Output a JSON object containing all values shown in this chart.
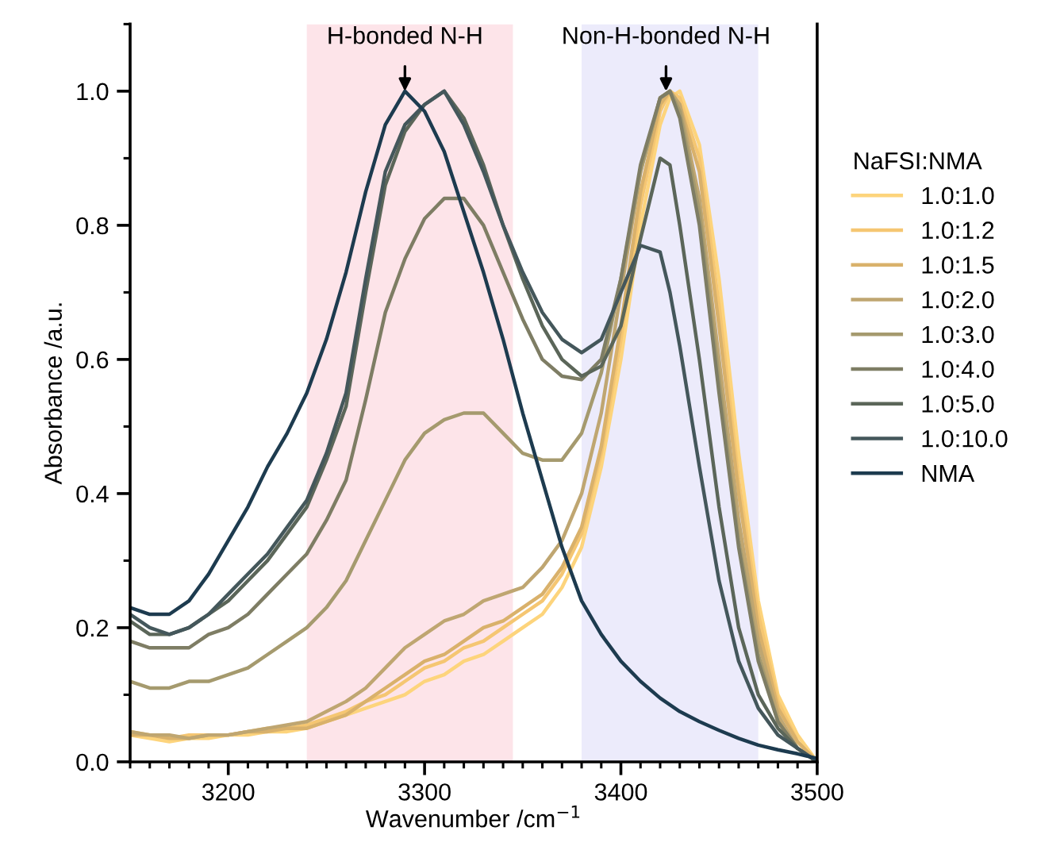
{
  "chart_data": {
    "type": "line",
    "xlabel": "Wavenumber /cm$^{−1}$",
    "ylabel": "Absorbance /a.u.",
    "legend_title": "NaFSI:NMA",
    "xlim": [
      3150,
      3500
    ],
    "xticks": [
      3200,
      3300,
      3400,
      3500
    ],
    "ylim": [
      0,
      1.1
    ],
    "yticks": [
      {
        "value": 0,
        "label": "0.0"
      },
      {
        "value": 0.2,
        "label": "0.2"
      },
      {
        "value": 0.4,
        "label": "0.4"
      },
      {
        "value": 0.6,
        "label": "0.6"
      },
      {
        "value": 0.8,
        "label": "0.8"
      },
      {
        "value": 1.0,
        "label": "1.0"
      }
    ],
    "grid": false,
    "legend": "right",
    "marker": "none",
    "line_style": "solid",
    "bands": [
      {
        "axis": "x",
        "from": 3240,
        "to": 3345,
        "color": "#fde4e9"
      },
      {
        "axis": "x",
        "from": 3380,
        "to": 3470,
        "color": "#ecebfb"
      }
    ],
    "annotations": [
      {
        "text": "H-bonded N-H",
        "x": 3290,
        "y": 1.0
      },
      {
        "text": "Non-H-bonded N-H",
        "x": 3423,
        "y": 1.0
      }
    ],
    "x": [
      3150,
      3160,
      3170,
      3180,
      3190,
      3200,
      3210,
      3220,
      3230,
      3240,
      3250,
      3260,
      3270,
      3280,
      3290,
      3300,
      3310,
      3320,
      3330,
      3340,
      3350,
      3360,
      3370,
      3380,
      3390,
      3400,
      3410,
      3420,
      3425,
      3430,
      3440,
      3450,
      3460,
      3470,
      3480,
      3490,
      3500
    ],
    "series": [
      {
        "name": "1.0:1.0",
        "color": "#fdd47c",
        "values": [
          0.04,
          0.035,
          0.03,
          0.035,
          0.035,
          0.04,
          0.04,
          0.045,
          0.045,
          0.05,
          0.06,
          0.07,
          0.08,
          0.09,
          0.1,
          0.12,
          0.13,
          0.15,
          0.16,
          0.18,
          0.2,
          0.22,
          0.26,
          0.32,
          0.44,
          0.6,
          0.8,
          0.95,
          0.99,
          1.0,
          0.92,
          0.72,
          0.46,
          0.24,
          0.1,
          0.04,
          0.0
        ]
      },
      {
        "name": "1.0:1.2",
        "color": "#f5c672",
        "values": [
          0.045,
          0.04,
          0.035,
          0.04,
          0.04,
          0.04,
          0.045,
          0.05,
          0.05,
          0.055,
          0.065,
          0.075,
          0.09,
          0.1,
          0.12,
          0.14,
          0.15,
          0.17,
          0.18,
          0.2,
          0.22,
          0.24,
          0.28,
          0.34,
          0.46,
          0.63,
          0.83,
          0.97,
          1.0,
          0.99,
          0.9,
          0.68,
          0.42,
          0.22,
          0.09,
          0.03,
          0.0
        ]
      },
      {
        "name": "1.0:1.5",
        "color": "#d9b16b",
        "values": [
          0.04,
          0.04,
          0.035,
          0.035,
          0.04,
          0.04,
          0.045,
          0.045,
          0.05,
          0.05,
          0.06,
          0.07,
          0.09,
          0.11,
          0.13,
          0.15,
          0.16,
          0.18,
          0.2,
          0.21,
          0.23,
          0.25,
          0.29,
          0.35,
          0.47,
          0.65,
          0.85,
          0.98,
          1.0,
          0.98,
          0.88,
          0.65,
          0.4,
          0.2,
          0.08,
          0.03,
          0.0
        ]
      },
      {
        "name": "1.0:2.0",
        "color": "#bfa671",
        "values": [
          0.045,
          0.04,
          0.04,
          0.035,
          0.04,
          0.04,
          0.045,
          0.05,
          0.055,
          0.06,
          0.075,
          0.09,
          0.11,
          0.14,
          0.17,
          0.19,
          0.21,
          0.22,
          0.24,
          0.25,
          0.26,
          0.29,
          0.33,
          0.4,
          0.52,
          0.7,
          0.88,
          0.99,
          1.0,
          0.98,
          0.84,
          0.6,
          0.36,
          0.18,
          0.07,
          0.02,
          0.0
        ]
      },
      {
        "name": "1.0:3.0",
        "color": "#a59a6e",
        "values": [
          0.12,
          0.11,
          0.11,
          0.12,
          0.12,
          0.13,
          0.14,
          0.16,
          0.18,
          0.2,
          0.23,
          0.27,
          0.33,
          0.39,
          0.45,
          0.49,
          0.51,
          0.52,
          0.52,
          0.49,
          0.46,
          0.45,
          0.45,
          0.49,
          0.58,
          0.72,
          0.88,
          0.99,
          1.0,
          0.97,
          0.82,
          0.57,
          0.33,
          0.16,
          0.06,
          0.02,
          0.0
        ]
      },
      {
        "name": "1.0:4.0",
        "color": "#7e7d64",
        "values": [
          0.18,
          0.17,
          0.17,
          0.17,
          0.19,
          0.2,
          0.22,
          0.25,
          0.28,
          0.31,
          0.36,
          0.42,
          0.54,
          0.67,
          0.75,
          0.81,
          0.84,
          0.84,
          0.8,
          0.73,
          0.66,
          0.6,
          0.575,
          0.57,
          0.6,
          0.72,
          0.89,
          0.99,
          1.0,
          0.96,
          0.8,
          0.55,
          0.32,
          0.15,
          0.06,
          0.02,
          0.0
        ]
      },
      {
        "name": "1.0:5.0",
        "color": "#5b6659",
        "values": [
          0.21,
          0.19,
          0.19,
          0.2,
          0.22,
          0.24,
          0.27,
          0.3,
          0.34,
          0.38,
          0.45,
          0.53,
          0.7,
          0.86,
          0.94,
          0.98,
          1.0,
          0.96,
          0.89,
          0.8,
          0.72,
          0.65,
          0.6,
          0.575,
          0.59,
          0.65,
          0.78,
          0.9,
          0.89,
          0.8,
          0.6,
          0.38,
          0.2,
          0.1,
          0.05,
          0.02,
          0.0
        ]
      },
      {
        "name": "1.0:10.0",
        "color": "#44575b",
        "values": [
          0.22,
          0.2,
          0.19,
          0.2,
          0.22,
          0.25,
          0.28,
          0.31,
          0.35,
          0.39,
          0.46,
          0.55,
          0.72,
          0.88,
          0.95,
          0.98,
          1.0,
          0.95,
          0.88,
          0.8,
          0.73,
          0.67,
          0.63,
          0.61,
          0.63,
          0.7,
          0.77,
          0.76,
          0.7,
          0.62,
          0.44,
          0.27,
          0.15,
          0.08,
          0.04,
          0.02,
          0.0
        ]
      },
      {
        "name": "NMA",
        "color": "#1d3b4f",
        "values": [
          0.23,
          0.22,
          0.22,
          0.24,
          0.28,
          0.33,
          0.38,
          0.44,
          0.49,
          0.55,
          0.63,
          0.73,
          0.85,
          0.95,
          1.0,
          0.97,
          0.91,
          0.82,
          0.73,
          0.63,
          0.52,
          0.42,
          0.32,
          0.24,
          0.19,
          0.15,
          0.12,
          0.095,
          0.085,
          0.075,
          0.06,
          0.047,
          0.035,
          0.025,
          0.018,
          0.012,
          0.005
        ]
      }
    ]
  }
}
